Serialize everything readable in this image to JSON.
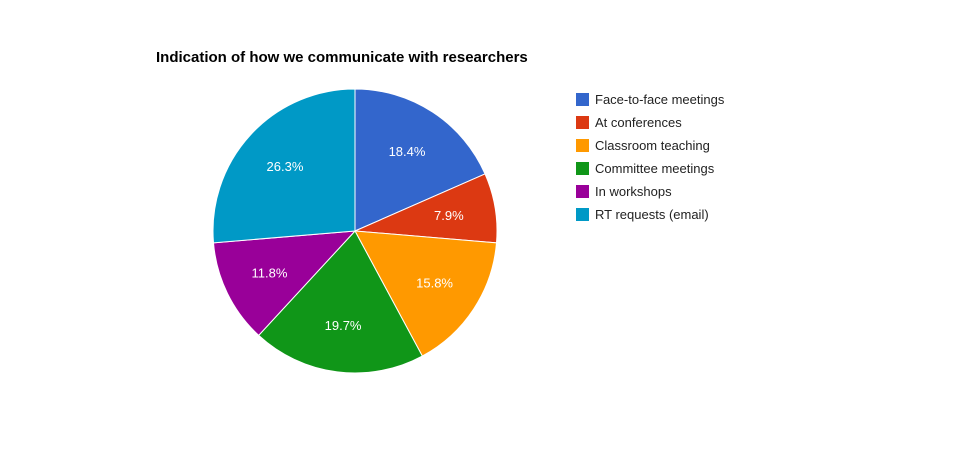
{
  "chart_data": {
    "type": "pie",
    "title": "Indication of how we communicate with researchers",
    "legend_position": "right",
    "slices": [
      {
        "label": "Face-to-face meetings",
        "value": 18.4,
        "display": "18.4%",
        "color": "#3366cc"
      },
      {
        "label": "At conferences",
        "value": 7.9,
        "display": "7.9%",
        "color": "#dc3912"
      },
      {
        "label": "Classroom teaching",
        "value": 15.8,
        "display": "15.8%",
        "color": "#ff9900"
      },
      {
        "label": "Committee meetings",
        "value": 19.7,
        "display": "19.7%",
        "color": "#109618"
      },
      {
        "label": "In workshops",
        "value": 11.8,
        "display": "11.8%",
        "color": "#990099"
      },
      {
        "label": "RT requests (email)",
        "value": 26.3,
        "display": "26.3%",
        "color": "#0099c6"
      }
    ]
  }
}
